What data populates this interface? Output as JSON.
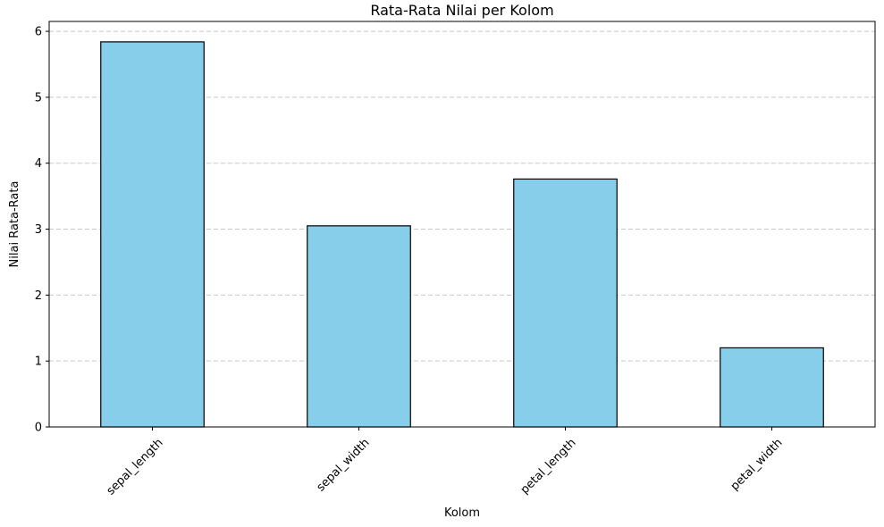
{
  "chart_data": {
    "type": "bar",
    "title": "Rata-Rata Nilai per Kolom",
    "xlabel": "Kolom",
    "ylabel": "Nilai Rata-Rata",
    "categories": [
      "sepal_length",
      "sepal_width",
      "petal_length",
      "petal_width"
    ],
    "values": [
      5.84,
      3.05,
      3.76,
      1.2
    ],
    "ylim": [
      0,
      6.15
    ],
    "yticks": [
      "0",
      "1",
      "2",
      "3",
      "4",
      "5",
      "6"
    ],
    "xtick_rotation_deg": 45,
    "grid": "y-dashed",
    "bar_color": "#87CEEB",
    "bar_edge_color": "#000000",
    "grid_color": "#c8c8c8"
  }
}
